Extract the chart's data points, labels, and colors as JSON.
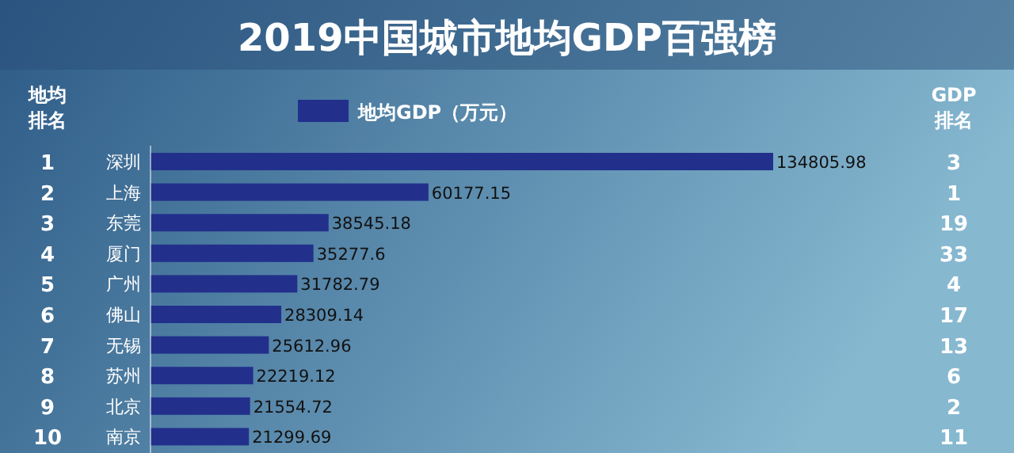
{
  "chart_data": {
    "type": "bar",
    "orientation": "horizontal",
    "title": "2019中国城市地均GDP百强榜",
    "categories": [
      "深圳",
      "上海",
      "东莞",
      "厦门",
      "广州",
      "佛山",
      "无锡",
      "苏州",
      "北京",
      "南京"
    ],
    "series": [
      {
        "name": "地均GDP（万元）",
        "color": "#22308c",
        "values": [
          134805.98,
          60177.15,
          38545.18,
          35277.6,
          31782.79,
          28309.14,
          25612.96,
          22219.12,
          21554.72,
          21299.69
        ]
      }
    ],
    "data_labels": true,
    "y2_categories": [
      "3",
      "1",
      "19",
      "33",
      "4",
      "17",
      "13",
      "6",
      "2",
      "11"
    ],
    "annotations": [
      "地均排名",
      "GDP排名",
      "1",
      "2",
      "3",
      "4",
      "5",
      "6",
      "7",
      "8",
      "9",
      "10"
    ],
    "legend": "top",
    "grid": false
  }
}
